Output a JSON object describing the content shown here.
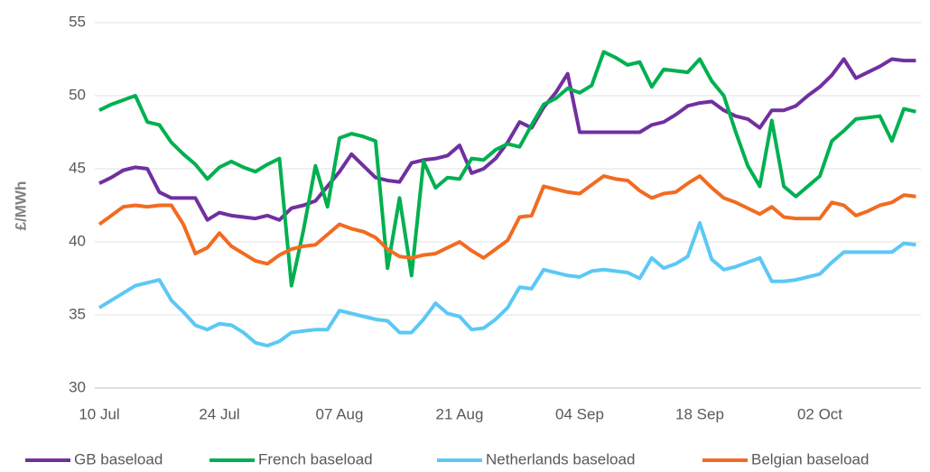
{
  "chart_data": {
    "type": "line",
    "y_label": "£/MWh",
    "categories": [
      "10 Jul",
      null,
      null,
      null,
      null,
      null,
      null,
      null,
      null,
      null,
      "24 Jul",
      null,
      null,
      null,
      null,
      null,
      null,
      null,
      null,
      null,
      "07 Aug",
      null,
      null,
      null,
      null,
      null,
      null,
      null,
      null,
      null,
      "21 Aug",
      null,
      null,
      null,
      null,
      null,
      null,
      null,
      null,
      null,
      "04 Sep",
      null,
      null,
      null,
      null,
      null,
      null,
      null,
      null,
      null,
      "18 Sep",
      null,
      null,
      null,
      null,
      null,
      null,
      null,
      null,
      null,
      "02 Oct",
      null,
      null,
      null,
      null,
      null,
      null,
      null,
      null
    ],
    "series": [
      {
        "name": "GB baseload",
        "color": "#7030a0",
        "values": [
          44,
          44.4,
          44.9,
          45.1,
          45,
          43.4,
          43,
          43,
          43,
          41.5,
          42,
          41.8,
          41.7,
          41.6,
          41.8,
          41.5,
          42.3,
          42.5,
          42.8,
          43.8,
          44.8,
          46,
          45.2,
          44.4,
          44.2,
          44.1,
          45.4,
          45.6,
          45.7,
          45.9,
          46.6,
          44.7,
          45,
          45.7,
          46.8,
          48.2,
          47.8,
          49.2,
          50.2,
          51.5,
          47.5,
          47.5,
          47.5,
          47.5,
          47.5,
          47.5,
          48,
          48.2,
          48.7,
          49.3,
          49.5,
          49.6,
          49,
          48.6,
          48.4,
          47.8,
          49,
          49,
          49.3,
          50,
          50.6,
          51.4,
          52.5,
          51.2,
          51.6,
          52,
          52.5,
          52.4,
          52.4
        ]
      },
      {
        "name": "French baseload",
        "color": "#00b050",
        "values": [
          49,
          49.4,
          49.7,
          50,
          48.2,
          48,
          46.8,
          46,
          45.3,
          44.3,
          45.1,
          45.5,
          45.1,
          44.8,
          45.3,
          45.7,
          37,
          40.8,
          45.2,
          42.4,
          47.1,
          47.4,
          47.2,
          46.9,
          38.2,
          43,
          37.7,
          45.5,
          43.7,
          44.4,
          44.3,
          45.7,
          45.6,
          46.3,
          46.7,
          46.5,
          48,
          49.4,
          49.8,
          50.5,
          50.2,
          50.7,
          53,
          52.6,
          52.1,
          52.3,
          50.6,
          51.8,
          51.7,
          51.6,
          52.5,
          51,
          50,
          47.5,
          45.2,
          43.8,
          48.3,
          43.8,
          43.1,
          43.8,
          44.5,
          46.9,
          47.6,
          48.4,
          48.5,
          48.6,
          46.9,
          49.1,
          48.9
        ]
      },
      {
        "name": "Netherlands baseload",
        "color": "#5bc8f5",
        "values": [
          35.5,
          36,
          36.5,
          37,
          37.2,
          37.4,
          36,
          35.2,
          34.3,
          34,
          34.4,
          34.3,
          33.8,
          33.1,
          32.9,
          33.2,
          33.8,
          33.9,
          34,
          34,
          35.3,
          35.1,
          34.9,
          34.7,
          34.6,
          33.8,
          33.8,
          34.7,
          35.8,
          35.1,
          34.9,
          34,
          34.1,
          34.7,
          35.5,
          36.9,
          36.8,
          38.1,
          37.9,
          37.7,
          37.6,
          38,
          38.1,
          38,
          37.9,
          37.5,
          38.9,
          38.2,
          38.5,
          39,
          41.3,
          38.8,
          38.1,
          38.3,
          38.6,
          38.9,
          37.3,
          37.3,
          37.4,
          37.6,
          37.8,
          38.6,
          39.3,
          39.3,
          39.3,
          39.3,
          39.3,
          39.9,
          39.8
        ]
      },
      {
        "name": "Belgian baseload",
        "color": "#f26b21",
        "values": [
          41.2,
          41.8,
          42.4,
          42.5,
          42.4,
          42.5,
          42.5,
          41.2,
          39.2,
          39.6,
          40.6,
          39.7,
          39.2,
          38.7,
          38.5,
          39.1,
          39.5,
          39.7,
          39.8,
          40.5,
          41.2,
          40.9,
          40.7,
          40.3,
          39.5,
          39,
          38.9,
          39.1,
          39.2,
          39.6,
          40,
          39.4,
          38.9,
          39.5,
          40.1,
          41.7,
          41.8,
          43.8,
          43.6,
          43.4,
          43.3,
          43.9,
          44.5,
          44.3,
          44.2,
          43.5,
          43,
          43.3,
          43.4,
          44,
          44.5,
          43.7,
          43,
          42.7,
          42.3,
          41.9,
          42.4,
          41.7,
          41.6,
          41.6,
          41.6,
          42.7,
          42.5,
          41.8,
          42.1,
          42.5,
          42.7,
          43.2,
          43.1
        ]
      }
    ],
    "ylim": [
      30,
      55
    ],
    "yticks": [
      30,
      35,
      40,
      45,
      50,
      55
    ],
    "grid": true,
    "legend": "bottom"
  }
}
